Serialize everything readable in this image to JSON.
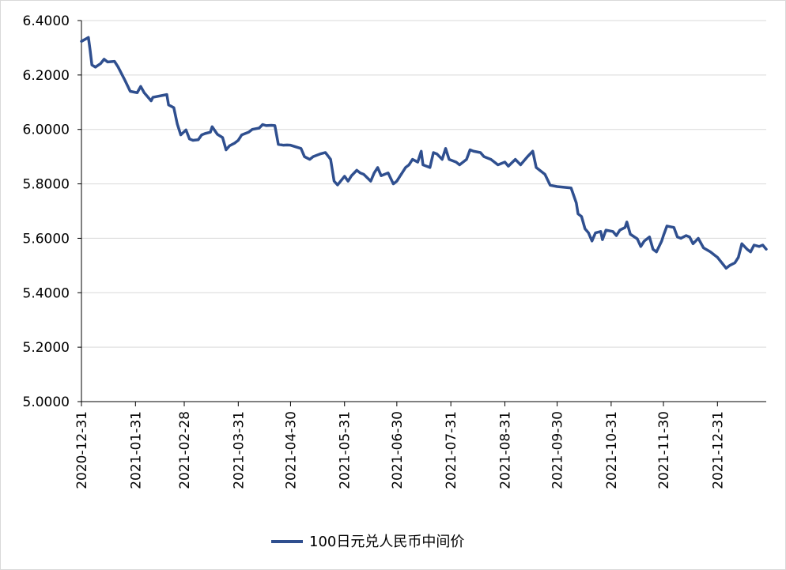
{
  "chart_data": {
    "type": "line",
    "ylim": [
      5.0,
      6.4
    ],
    "ytick_labels": [
      "5.0000",
      "5.2000",
      "5.4000",
      "5.6000",
      "5.8000",
      "6.0000",
      "6.2000",
      "6.4000"
    ],
    "ytick_values": [
      5.0,
      5.2,
      5.4,
      5.6,
      5.8,
      6.0,
      6.2,
      6.4
    ],
    "xtick_labels": [
      "2020-12-31",
      "2021-01-31",
      "2021-02-28",
      "2021-03-31",
      "2021-04-30",
      "2021-05-31",
      "2021-06-30",
      "2021-07-31",
      "2021-08-31",
      "2021-09-30",
      "2021-10-31",
      "2021-11-30",
      "2021-12-31"
    ],
    "xlim": [
      "2020-12-31",
      "2022-01-28"
    ],
    "grid": "horizontal",
    "legend_position": "bottom",
    "line_color": "#2f4f8f",
    "series": [
      {
        "name": "100日元兑人民币中间价",
        "points": [
          [
            "2020-12-31",
            6.3236
          ],
          [
            "2021-01-04",
            6.338
          ],
          [
            "2021-01-05",
            6.29
          ],
          [
            "2021-01-06",
            6.237
          ],
          [
            "2021-01-08",
            6.229
          ],
          [
            "2021-01-11",
            6.242
          ],
          [
            "2021-01-13",
            6.258
          ],
          [
            "2021-01-15",
            6.248
          ],
          [
            "2021-01-19",
            6.25
          ],
          [
            "2021-01-21",
            6.23
          ],
          [
            "2021-01-25",
            6.18
          ],
          [
            "2021-01-28",
            6.14
          ],
          [
            "2021-02-01",
            6.135
          ],
          [
            "2021-02-03",
            6.158
          ],
          [
            "2021-02-05",
            6.135
          ],
          [
            "2021-02-09",
            6.105
          ],
          [
            "2021-02-10",
            6.118
          ],
          [
            "2021-02-18",
            6.128
          ],
          [
            "2021-02-19",
            6.09
          ],
          [
            "2021-02-22",
            6.08
          ],
          [
            "2021-02-24",
            6.02
          ],
          [
            "2021-02-26",
            5.98
          ],
          [
            "2021-03-01",
            5.998
          ],
          [
            "2021-03-03",
            5.965
          ],
          [
            "2021-03-05",
            5.96
          ],
          [
            "2021-03-08",
            5.962
          ],
          [
            "2021-03-10",
            5.98
          ],
          [
            "2021-03-12",
            5.985
          ],
          [
            "2021-03-15",
            5.99
          ],
          [
            "2021-03-16",
            6.01
          ],
          [
            "2021-03-19",
            5.982
          ],
          [
            "2021-03-22",
            5.97
          ],
          [
            "2021-03-24",
            5.925
          ],
          [
            "2021-03-26",
            5.94
          ],
          [
            "2021-03-29",
            5.95
          ],
          [
            "2021-03-31",
            5.96
          ],
          [
            "2021-04-02",
            5.98
          ],
          [
            "2021-04-06",
            5.99
          ],
          [
            "2021-04-08",
            6.0
          ],
          [
            "2021-04-12",
            6.005
          ],
          [
            "2021-04-14",
            6.018
          ],
          [
            "2021-04-16",
            6.014
          ],
          [
            "2021-04-19",
            6.015
          ],
          [
            "2021-04-21",
            6.014
          ],
          [
            "2021-04-23",
            5.945
          ],
          [
            "2021-04-26",
            5.942
          ],
          [
            "2021-04-28",
            5.943
          ],
          [
            "2021-04-30",
            5.942
          ],
          [
            "2021-05-06",
            5.93
          ],
          [
            "2021-05-08",
            5.9
          ],
          [
            "2021-05-11",
            5.89
          ],
          [
            "2021-05-13",
            5.9
          ],
          [
            "2021-05-17",
            5.91
          ],
          [
            "2021-05-20",
            5.915
          ],
          [
            "2021-05-23",
            5.89
          ],
          [
            "2021-05-25",
            5.81
          ],
          [
            "2021-05-27",
            5.796
          ],
          [
            "2021-05-31",
            5.828
          ],
          [
            "2021-06-02",
            5.81
          ],
          [
            "2021-06-04",
            5.83
          ],
          [
            "2021-06-07",
            5.85
          ],
          [
            "2021-06-09",
            5.84
          ],
          [
            "2021-06-11",
            5.835
          ],
          [
            "2021-06-15",
            5.81
          ],
          [
            "2021-06-17",
            5.84
          ],
          [
            "2021-06-19",
            5.86
          ],
          [
            "2021-06-21",
            5.83
          ],
          [
            "2021-06-23",
            5.835
          ],
          [
            "2021-06-25",
            5.84
          ],
          [
            "2021-06-28",
            5.8
          ],
          [
            "2021-06-30",
            5.81
          ],
          [
            "2021-07-02",
            5.83
          ],
          [
            "2021-07-05",
            5.86
          ],
          [
            "2021-07-07",
            5.87
          ],
          [
            "2021-07-09",
            5.89
          ],
          [
            "2021-07-12",
            5.88
          ],
          [
            "2021-07-14",
            5.92
          ],
          [
            "2021-07-15",
            5.87
          ],
          [
            "2021-07-19",
            5.86
          ],
          [
            "2021-07-21",
            5.915
          ],
          [
            "2021-07-23",
            5.91
          ],
          [
            "2021-07-26",
            5.89
          ],
          [
            "2021-07-28",
            5.93
          ],
          [
            "2021-07-30",
            5.89
          ],
          [
            "2021-08-03",
            5.88
          ],
          [
            "2021-08-05",
            5.87
          ],
          [
            "2021-08-09",
            5.89
          ],
          [
            "2021-08-11",
            5.925
          ],
          [
            "2021-08-13",
            5.92
          ],
          [
            "2021-08-17",
            5.915
          ],
          [
            "2021-08-19",
            5.9
          ],
          [
            "2021-08-23",
            5.89
          ],
          [
            "2021-08-25",
            5.88
          ],
          [
            "2021-08-27",
            5.87
          ],
          [
            "2021-08-31",
            5.88
          ],
          [
            "2021-09-02",
            5.865
          ],
          [
            "2021-09-06",
            5.89
          ],
          [
            "2021-09-09",
            5.87
          ],
          [
            "2021-09-13",
            5.9
          ],
          [
            "2021-09-16",
            5.92
          ],
          [
            "2021-09-18",
            5.86
          ],
          [
            "2021-09-23",
            5.835
          ],
          [
            "2021-09-26",
            5.795
          ],
          [
            "2021-09-30",
            5.79
          ],
          [
            "2021-10-08",
            5.785
          ],
          [
            "2021-10-11",
            5.73
          ],
          [
            "2021-10-12",
            5.69
          ],
          [
            "2021-10-14",
            5.68
          ],
          [
            "2021-10-16",
            5.635
          ],
          [
            "2021-10-18",
            5.62
          ],
          [
            "2021-10-20",
            5.59
          ],
          [
            "2021-10-22",
            5.62
          ],
          [
            "2021-10-25",
            5.625
          ],
          [
            "2021-10-26",
            5.595
          ],
          [
            "2021-10-28",
            5.63
          ],
          [
            "2021-11-01",
            5.625
          ],
          [
            "2021-11-03",
            5.61
          ],
          [
            "2021-11-05",
            5.63
          ],
          [
            "2021-11-08",
            5.64
          ],
          [
            "2021-11-09",
            5.66
          ],
          [
            "2021-11-11",
            5.615
          ],
          [
            "2021-11-15",
            5.598
          ],
          [
            "2021-11-17",
            5.57
          ],
          [
            "2021-11-19",
            5.59
          ],
          [
            "2021-11-22",
            5.605
          ],
          [
            "2021-11-24",
            5.56
          ],
          [
            "2021-11-26",
            5.55
          ],
          [
            "2021-11-29",
            5.59
          ],
          [
            "2021-11-30",
            5.61
          ],
          [
            "2021-12-02",
            5.645
          ],
          [
            "2021-12-06",
            5.64
          ],
          [
            "2021-12-08",
            5.605
          ],
          [
            "2021-12-10",
            5.6
          ],
          [
            "2021-12-13",
            5.61
          ],
          [
            "2021-12-15",
            5.605
          ],
          [
            "2021-12-17",
            5.58
          ],
          [
            "2021-12-20",
            5.6
          ],
          [
            "2021-12-23",
            5.565
          ],
          [
            "2021-12-27",
            5.55
          ],
          [
            "2021-12-29",
            5.54
          ],
          [
            "2021-12-31",
            5.53
          ],
          [
            "2022-01-05",
            5.49
          ],
          [
            "2022-01-07",
            5.5
          ],
          [
            "2022-01-10",
            5.51
          ],
          [
            "2022-01-12",
            5.53
          ],
          [
            "2022-01-14",
            5.58
          ],
          [
            "2022-01-17",
            5.56
          ],
          [
            "2022-01-19",
            5.55
          ],
          [
            "2022-01-21",
            5.575
          ],
          [
            "2022-01-24",
            5.57
          ],
          [
            "2022-01-26",
            5.575
          ],
          [
            "2022-01-28",
            5.56
          ]
        ]
      }
    ]
  }
}
